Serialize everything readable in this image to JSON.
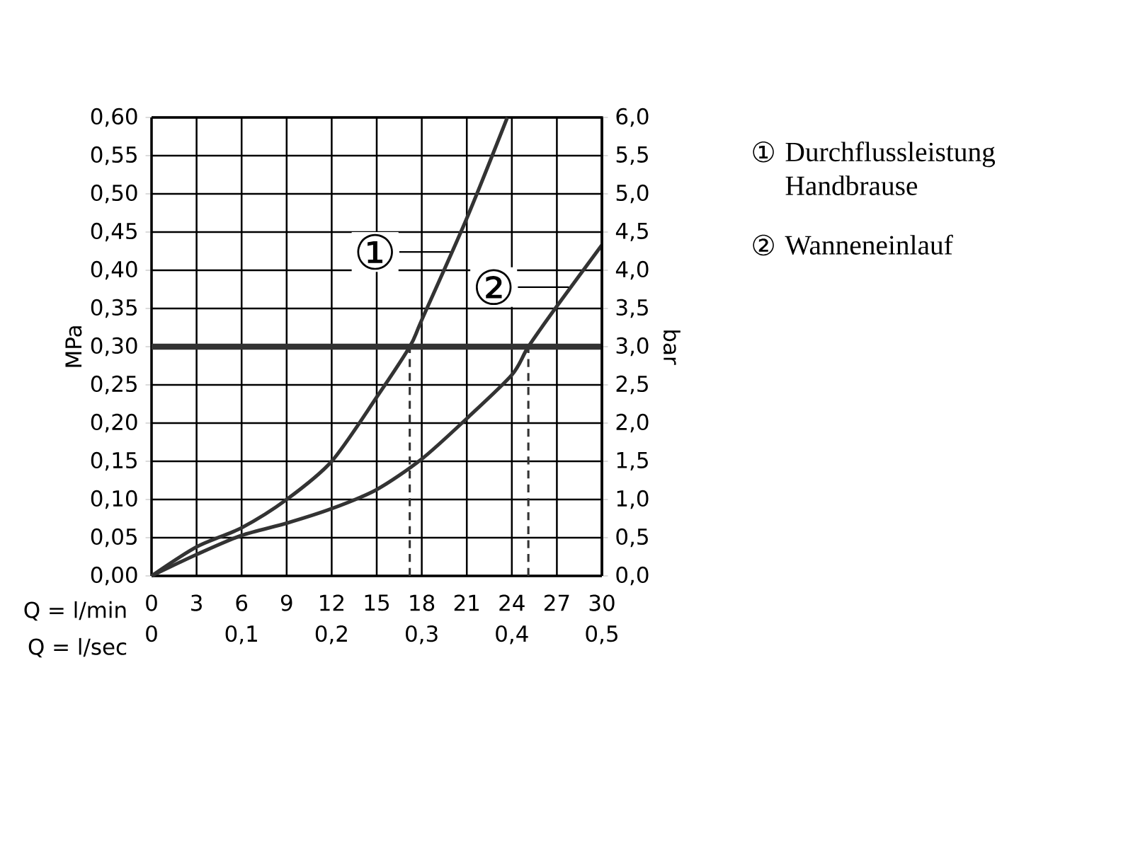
{
  "chart_data": {
    "type": "line",
    "xlabel": "Q = l/min",
    "x2label": "Q = l/sec",
    "ylabel": "MPa",
    "y2label": "bar",
    "xlim": [
      0,
      30
    ],
    "xticks": [
      0,
      3,
      6,
      9,
      12,
      15,
      18,
      21,
      24,
      27,
      30
    ],
    "x2lim": [
      0,
      0.5
    ],
    "x2ticks": [
      0,
      {
        "value": 0.1,
        "label": "0,1"
      },
      {
        "value": 0.2,
        "label": "0,2"
      },
      {
        "value": 0.3,
        "label": "0,3"
      },
      {
        "value": 0.4,
        "label": "0,4"
      },
      {
        "value": 0.5,
        "label": "0,5"
      }
    ],
    "ylim": [
      0,
      0.6
    ],
    "yticks": [
      {
        "value": 0,
        "label": "0,00"
      },
      {
        "value": 0.05,
        "label": "0,05"
      },
      {
        "value": 0.1,
        "label": "0,10"
      },
      {
        "value": 0.15,
        "label": "0,15"
      },
      {
        "value": 0.2,
        "label": "0,20"
      },
      {
        "value": 0.25,
        "label": "0,25"
      },
      {
        "value": 0.3,
        "label": "0,30"
      },
      {
        "value": 0.35,
        "label": "0,35"
      },
      {
        "value": 0.4,
        "label": "0,40"
      },
      {
        "value": 0.45,
        "label": "0,45"
      },
      {
        "value": 0.5,
        "label": "0,50"
      },
      {
        "value": 0.55,
        "label": "0,55"
      },
      {
        "value": 0.6,
        "label": "0,60"
      }
    ],
    "y2lim": [
      0,
      6
    ],
    "y2ticks": [
      {
        "value": 0,
        "label": "0,0"
      },
      {
        "value": 0.5,
        "label": "0,5"
      },
      {
        "value": 1,
        "label": "1,0"
      },
      {
        "value": 1.5,
        "label": "1,5"
      },
      {
        "value": 2,
        "label": "2,0"
      },
      {
        "value": 2.5,
        "label": "2,5"
      },
      {
        "value": 3,
        "label": "3,0"
      },
      {
        "value": 3.5,
        "label": "3,5"
      },
      {
        "value": 4,
        "label": "4,0"
      },
      {
        "value": 4.5,
        "label": "4,5"
      },
      {
        "value": 5,
        "label": "5,0"
      },
      {
        "value": 5.5,
        "label": "5,5"
      },
      {
        "value": 6,
        "label": "6,0"
      }
    ],
    "grid": true,
    "legend": "right",
    "series": [
      {
        "name": "Durchflussleistung Handbrause",
        "color": "#333333",
        "x": [
          0,
          3,
          6,
          9,
          12,
          15,
          17.2,
          18,
          21,
          23.7
        ],
        "values": [
          0,
          0.038,
          0.063,
          0.1,
          0.15,
          0.234,
          0.3,
          0.335,
          0.468,
          0.6
        ]
      },
      {
        "name": "Wanneneinlauf",
        "color": "#333333",
        "x": [
          0,
          3,
          6,
          9,
          12,
          15,
          18,
          21,
          24,
          25.1,
          27,
          30
        ],
        "values": [
          0,
          0.028,
          0.053,
          0.069,
          0.088,
          0.113,
          0.153,
          0.206,
          0.263,
          0.3,
          0.353,
          0.433
        ]
      },
      {
        "type": "line",
        "line_style": "dashed",
        "color": "#333333",
        "x": [
          17.2,
          17.2
        ],
        "values": [
          0,
          0.3
        ]
      },
      {
        "type": "line",
        "line_style": "dashed",
        "color": "#333333",
        "x": [
          25.1,
          25.1
        ],
        "values": [
          0,
          0.3
        ]
      }
    ],
    "ref_lines": [
      {
        "axis": "y",
        "value": 0.3,
        "color": "#333333"
      }
    ],
    "annotations": [
      {
        "text": "①",
        "x": 19.9,
        "y": 0.424
      },
      {
        "text": "②",
        "x": 27.8,
        "y": 0.378
      }
    ]
  }
}
